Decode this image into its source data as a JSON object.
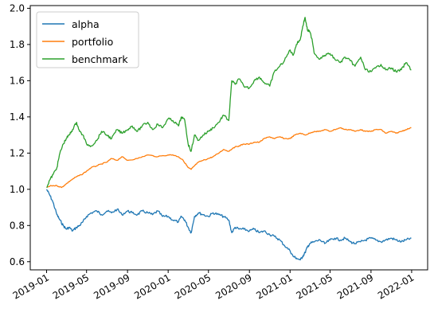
{
  "chart_data": {
    "type": "line",
    "title": "",
    "xlabel": "",
    "ylabel": "",
    "xlim": [
      "2018-11-13",
      "2022-02-18"
    ],
    "ylim": [
      0.555,
      2.015
    ],
    "grid": false,
    "legend_position": "upper-left",
    "y_ticks": [
      0.6,
      0.8,
      1.0,
      1.2,
      1.4,
      1.6,
      1.8,
      2.0
    ],
    "y_tick_labels": [
      "0.6",
      "0.8",
      "1.0",
      "1.2",
      "1.4",
      "1.6",
      "1.8",
      "2.0"
    ],
    "x_ticks": [
      "2019-01-01",
      "2019-05-01",
      "2019-09-01",
      "2020-01-01",
      "2020-05-01",
      "2020-09-01",
      "2021-01-01",
      "2021-05-01",
      "2021-09-01",
      "2022-01-01"
    ],
    "x_tick_labels": [
      "2019-01",
      "2019-05",
      "2019-09",
      "2020-01",
      "2020-05",
      "2020-09",
      "2021-01",
      "2021-05",
      "2021-09",
      "2022-01"
    ],
    "series": [
      {
        "name": "alpha",
        "color": "#1f77b4",
        "x": [
          "2019-01-01",
          "2019-01-10",
          "2019-01-20",
          "2019-02-01",
          "2019-02-10",
          "2019-02-20",
          "2019-03-01",
          "2019-03-10",
          "2019-03-20",
          "2019-04-01",
          "2019-04-10",
          "2019-04-20",
          "2019-05-01",
          "2019-05-15",
          "2019-06-01",
          "2019-06-15",
          "2019-07-01",
          "2019-07-15",
          "2019-08-01",
          "2019-08-15",
          "2019-09-01",
          "2019-09-15",
          "2019-10-01",
          "2019-10-15",
          "2019-11-01",
          "2019-11-15",
          "2019-12-01",
          "2019-12-15",
          "2020-01-01",
          "2020-01-15",
          "2020-02-01",
          "2020-02-10",
          "2020-02-20",
          "2020-03-01",
          "2020-03-10",
          "2020-03-20",
          "2020-04-01",
          "2020-04-15",
          "2020-05-01",
          "2020-05-15",
          "2020-06-01",
          "2020-06-15",
          "2020-07-01",
          "2020-07-10",
          "2020-07-20",
          "2020-08-01",
          "2020-08-15",
          "2020-09-01",
          "2020-09-15",
          "2020-10-01",
          "2020-10-15",
          "2020-11-01",
          "2020-11-15",
          "2020-12-01",
          "2020-12-15",
          "2021-01-01",
          "2021-01-10",
          "2021-01-20",
          "2021-02-01",
          "2021-02-08",
          "2021-02-15",
          "2021-02-22",
          "2021-03-01",
          "2021-03-15",
          "2021-04-01",
          "2021-04-15",
          "2021-05-01",
          "2021-05-15",
          "2021-06-01",
          "2021-06-15",
          "2021-07-01",
          "2021-07-15",
          "2021-08-01",
          "2021-08-15",
          "2021-09-01",
          "2021-09-15",
          "2021-10-01",
          "2021-10-15",
          "2021-11-01",
          "2021-11-15",
          "2021-12-01",
          "2021-12-15",
          "2021-12-31"
        ],
        "values": [
          1.0,
          0.97,
          0.93,
          0.86,
          0.83,
          0.8,
          0.78,
          0.79,
          0.77,
          0.79,
          0.8,
          0.82,
          0.85,
          0.87,
          0.88,
          0.86,
          0.88,
          0.87,
          0.89,
          0.86,
          0.88,
          0.87,
          0.86,
          0.88,
          0.87,
          0.86,
          0.88,
          0.85,
          0.85,
          0.83,
          0.82,
          0.85,
          0.83,
          0.79,
          0.76,
          0.85,
          0.87,
          0.86,
          0.85,
          0.87,
          0.86,
          0.85,
          0.83,
          0.76,
          0.79,
          0.78,
          0.78,
          0.77,
          0.78,
          0.76,
          0.77,
          0.75,
          0.74,
          0.72,
          0.69,
          0.66,
          0.63,
          0.62,
          0.61,
          0.63,
          0.65,
          0.68,
          0.7,
          0.71,
          0.72,
          0.7,
          0.72,
          0.73,
          0.72,
          0.73,
          0.71,
          0.7,
          0.71,
          0.72,
          0.73,
          0.72,
          0.71,
          0.72,
          0.73,
          0.72,
          0.71,
          0.72,
          0.73
        ]
      },
      {
        "name": "portfolio",
        "color": "#ff7f0e",
        "x": [
          "2019-01-01",
          "2019-01-15",
          "2019-02-01",
          "2019-02-15",
          "2019-03-01",
          "2019-03-15",
          "2019-04-01",
          "2019-04-15",
          "2019-05-01",
          "2019-05-15",
          "2019-06-01",
          "2019-06-15",
          "2019-07-01",
          "2019-07-15",
          "2019-08-01",
          "2019-08-15",
          "2019-09-01",
          "2019-10-01",
          "2019-11-01",
          "2019-12-01",
          "2020-01-01",
          "2020-01-15",
          "2020-02-01",
          "2020-02-15",
          "2020-03-01",
          "2020-03-10",
          "2020-03-20",
          "2020-04-01",
          "2020-04-15",
          "2020-05-01",
          "2020-05-15",
          "2020-06-01",
          "2020-06-15",
          "2020-07-01",
          "2020-07-15",
          "2020-08-01",
          "2020-08-15",
          "2020-09-01",
          "2020-09-15",
          "2020-10-01",
          "2020-10-15",
          "2020-11-01",
          "2020-11-15",
          "2020-12-01",
          "2020-12-15",
          "2021-01-01",
          "2021-01-15",
          "2021-02-01",
          "2021-02-15",
          "2021-03-01",
          "2021-03-15",
          "2021-04-01",
          "2021-04-15",
          "2021-05-01",
          "2021-05-15",
          "2021-06-01",
          "2021-06-15",
          "2021-07-01",
          "2021-07-15",
          "2021-08-01",
          "2021-08-15",
          "2021-09-01",
          "2021-09-15",
          "2021-10-01",
          "2021-10-15",
          "2021-11-01",
          "2021-11-15",
          "2021-12-01",
          "2021-12-15",
          "2021-12-31"
        ],
        "values": [
          1.01,
          1.02,
          1.02,
          1.01,
          1.03,
          1.05,
          1.07,
          1.08,
          1.1,
          1.12,
          1.13,
          1.14,
          1.15,
          1.17,
          1.16,
          1.18,
          1.16,
          1.17,
          1.19,
          1.18,
          1.19,
          1.19,
          1.18,
          1.16,
          1.12,
          1.11,
          1.13,
          1.15,
          1.16,
          1.17,
          1.18,
          1.2,
          1.22,
          1.21,
          1.23,
          1.24,
          1.25,
          1.25,
          1.26,
          1.26,
          1.28,
          1.29,
          1.28,
          1.29,
          1.28,
          1.28,
          1.3,
          1.31,
          1.3,
          1.31,
          1.32,
          1.32,
          1.33,
          1.32,
          1.33,
          1.34,
          1.33,
          1.33,
          1.32,
          1.33,
          1.32,
          1.32,
          1.33,
          1.33,
          1.31,
          1.32,
          1.31,
          1.32,
          1.33,
          1.34
        ]
      },
      {
        "name": "benchmark",
        "color": "#2ca02c",
        "x": [
          "2019-01-01",
          "2019-01-10",
          "2019-01-20",
          "2019-02-01",
          "2019-02-10",
          "2019-02-20",
          "2019-03-01",
          "2019-03-10",
          "2019-03-20",
          "2019-04-01",
          "2019-04-10",
          "2019-04-20",
          "2019-05-01",
          "2019-05-15",
          "2019-06-01",
          "2019-06-15",
          "2019-07-01",
          "2019-07-15",
          "2019-08-01",
          "2019-08-15",
          "2019-09-01",
          "2019-09-15",
          "2019-10-01",
          "2019-10-15",
          "2019-11-01",
          "2019-11-15",
          "2019-12-01",
          "2019-12-15",
          "2020-01-01",
          "2020-01-15",
          "2020-02-01",
          "2020-02-10",
          "2020-02-20",
          "2020-03-01",
          "2020-03-10",
          "2020-03-20",
          "2020-04-01",
          "2020-04-15",
          "2020-05-01",
          "2020-05-15",
          "2020-06-01",
          "2020-06-15",
          "2020-07-01",
          "2020-07-10",
          "2020-07-20",
          "2020-08-01",
          "2020-08-15",
          "2020-09-01",
          "2020-09-15",
          "2020-10-01",
          "2020-10-15",
          "2020-11-01",
          "2020-11-15",
          "2020-12-01",
          "2020-12-15",
          "2021-01-01",
          "2021-01-10",
          "2021-01-20",
          "2021-02-01",
          "2021-02-08",
          "2021-02-15",
          "2021-02-22",
          "2021-03-01",
          "2021-03-08",
          "2021-03-15",
          "2021-04-01",
          "2021-04-15",
          "2021-05-01",
          "2021-05-15",
          "2021-06-01",
          "2021-06-15",
          "2021-07-01",
          "2021-07-15",
          "2021-08-01",
          "2021-08-15",
          "2021-09-01",
          "2021-09-15",
          "2021-10-01",
          "2021-10-15",
          "2021-11-01",
          "2021-11-15",
          "2021-12-01",
          "2021-12-15",
          "2021-12-31"
        ],
        "values": [
          1.01,
          1.05,
          1.08,
          1.12,
          1.2,
          1.25,
          1.28,
          1.3,
          1.33,
          1.37,
          1.32,
          1.3,
          1.25,
          1.24,
          1.27,
          1.32,
          1.3,
          1.28,
          1.33,
          1.31,
          1.33,
          1.35,
          1.32,
          1.35,
          1.37,
          1.33,
          1.36,
          1.34,
          1.39,
          1.38,
          1.35,
          1.4,
          1.38,
          1.25,
          1.21,
          1.3,
          1.27,
          1.3,
          1.32,
          1.34,
          1.37,
          1.41,
          1.38,
          1.6,
          1.58,
          1.61,
          1.57,
          1.56,
          1.6,
          1.62,
          1.59,
          1.57,
          1.65,
          1.68,
          1.71,
          1.77,
          1.74,
          1.8,
          1.83,
          1.9,
          1.95,
          1.88,
          1.87,
          1.83,
          1.75,
          1.72,
          1.74,
          1.75,
          1.72,
          1.7,
          1.73,
          1.71,
          1.68,
          1.73,
          1.66,
          1.65,
          1.67,
          1.69,
          1.66,
          1.67,
          1.65,
          1.66,
          1.7,
          1.66
        ]
      }
    ]
  }
}
